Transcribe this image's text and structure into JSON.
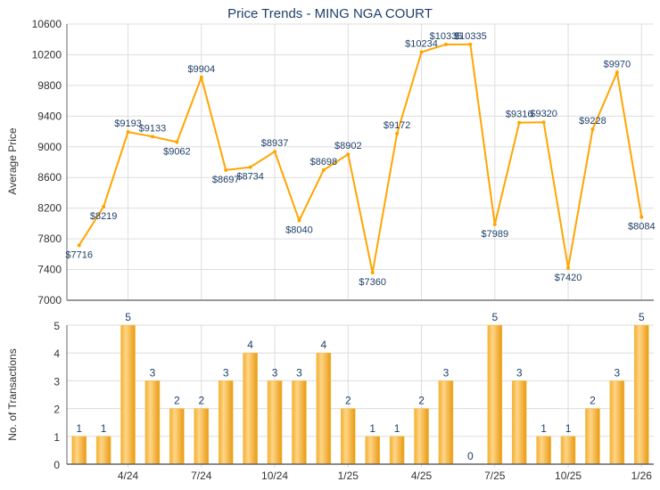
{
  "chart_data": [
    {
      "type": "line",
      "title": "Price Trends - MING NGA COURT",
      "ylabel": "Average Price",
      "ylim": [
        7000,
        10600
      ],
      "yticks": [
        7000,
        7400,
        7800,
        8200,
        8600,
        9000,
        9400,
        9800,
        10200,
        10600
      ],
      "x": [
        "2/24",
        "3/24",
        "4/24",
        "5/24",
        "6/24",
        "7/24",
        "8/24",
        "9/24",
        "10/24",
        "11/24",
        "12/24",
        "1/25",
        "2/25",
        "3/25",
        "4/25",
        "5/25",
        "6/25",
        "7/25",
        "8/25",
        "9/25",
        "10/25",
        "11/25",
        "12/25",
        "1/26"
      ],
      "values": [
        7716,
        8219,
        9193,
        9133,
        9062,
        9904,
        8697,
        8734,
        8937,
        8040,
        8698,
        8902,
        7360,
        9172,
        10234,
        10335,
        10335,
        7989,
        9316,
        9320,
        7420,
        9228,
        9970,
        8084
      ],
      "label_prefix": "$",
      "color": "#FFA500"
    },
    {
      "type": "bar",
      "ylabel": "No. of Transactions",
      "ylim": [
        0,
        5
      ],
      "yticks": [
        0,
        1,
        2,
        3,
        4,
        5
      ],
      "xticklabels": [
        "4/24",
        "7/24",
        "10/24",
        "1/25",
        "4/25",
        "7/25",
        "10/25",
        "1/26"
      ],
      "xtick_indices": [
        2,
        5,
        8,
        11,
        14,
        17,
        20,
        23
      ],
      "values": [
        1,
        1,
        5,
        3,
        2,
        2,
        3,
        4,
        3,
        3,
        4,
        2,
        1,
        1,
        2,
        3,
        0,
        5,
        3,
        1,
        1,
        2,
        3,
        5
      ],
      "color": "#F0A820"
    }
  ]
}
